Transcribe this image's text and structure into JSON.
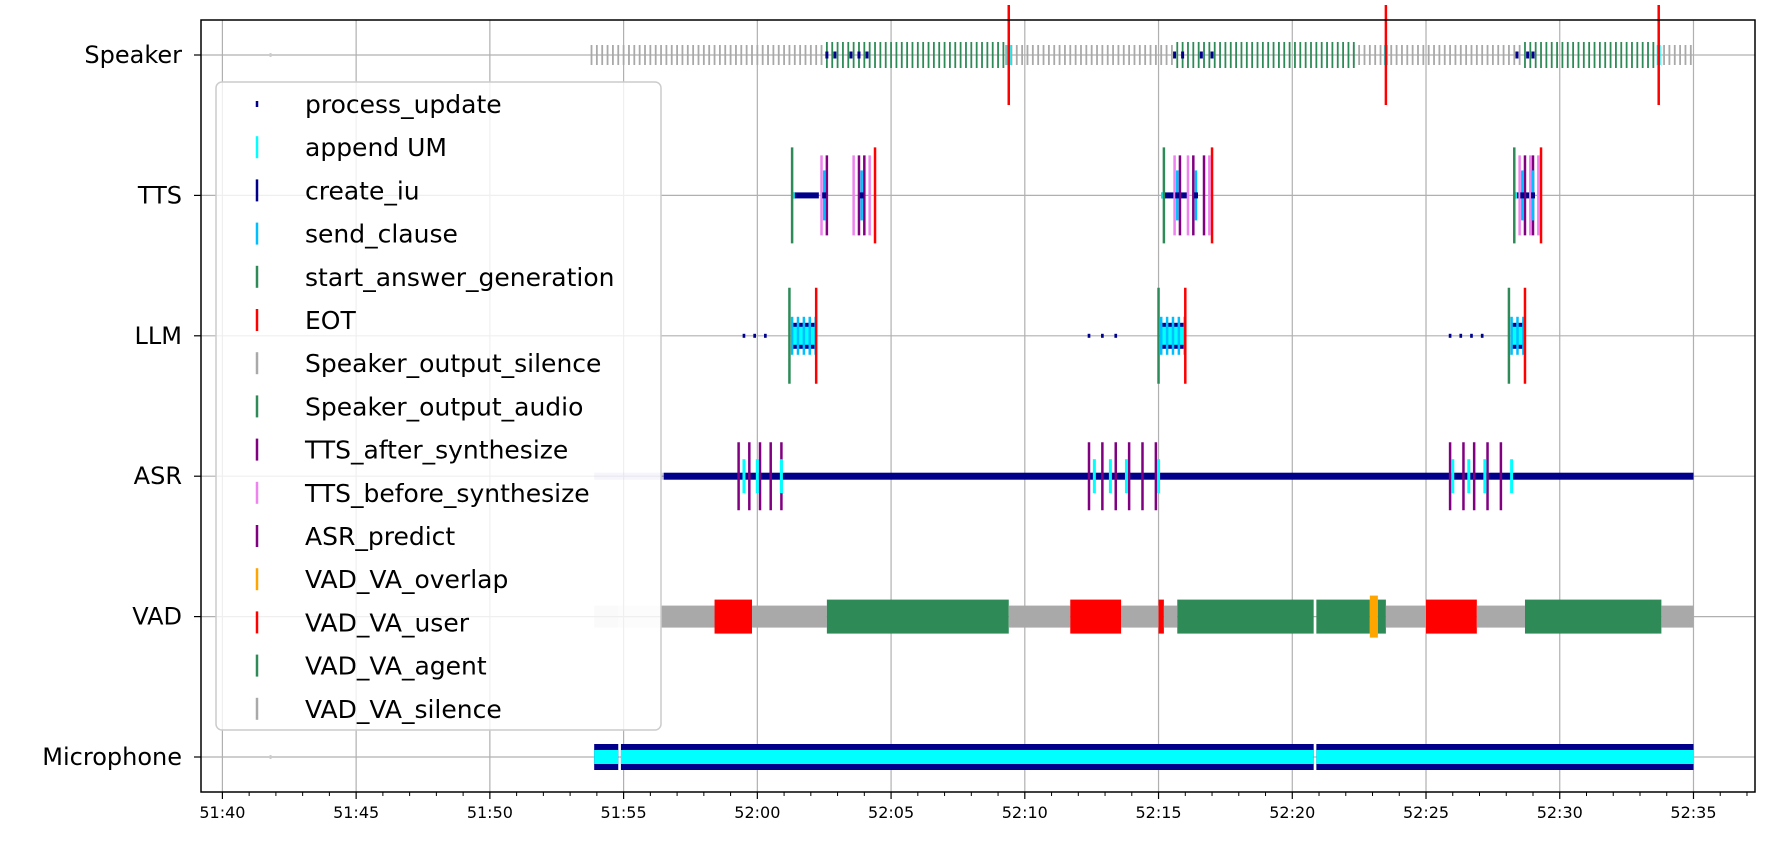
{
  "chart_data": {
    "type": "timeline",
    "x_unit": "minutes:seconds",
    "xlim": [
      99.2,
      157.3
    ],
    "x_ticks": [
      {
        "t": 100,
        "label": "51:40"
      },
      {
        "t": 105,
        "label": "51:45"
      },
      {
        "t": 110,
        "label": "51:50"
      },
      {
        "t": 115,
        "label": "51:55"
      },
      {
        "t": 120,
        "label": "52:00"
      },
      {
        "t": 125,
        "label": "52:05"
      },
      {
        "t": 130,
        "label": "52:10"
      },
      {
        "t": 135,
        "label": "52:15"
      },
      {
        "t": 140,
        "label": "52:20"
      },
      {
        "t": 145,
        "label": "52:25"
      },
      {
        "t": 150,
        "label": "52:30"
      },
      {
        "t": 155,
        "label": "52:35"
      }
    ],
    "rows": [
      "Microphone",
      "VAD",
      "ASR",
      "LLM",
      "TTS",
      "Speaker"
    ],
    "grid": true,
    "legend_position": "upper-left",
    "legend": [
      {
        "label": "process_update",
        "color": "#00008b",
        "marker": "dot"
      },
      {
        "label": "append UM",
        "color": "#00ffff",
        "marker": "tick"
      },
      {
        "label": "create_iu",
        "color": "#00008b",
        "marker": "tick"
      },
      {
        "label": "send_clause",
        "color": "#00bfff",
        "marker": "tick"
      },
      {
        "label": "start_answer_generation",
        "color": "#2e8b57",
        "marker": "tick"
      },
      {
        "label": "EOT",
        "color": "#ff0000",
        "marker": "tick"
      },
      {
        "label": "Speaker_output_silence",
        "color": "#a9a9a9",
        "marker": "tick"
      },
      {
        "label": "Speaker_output_audio",
        "color": "#2e8b57",
        "marker": "tick"
      },
      {
        "label": "TTS_after_synthesize",
        "color": "#800080",
        "marker": "tick"
      },
      {
        "label": "TTS_before_synthesize",
        "color": "#ee82ee",
        "marker": "tick"
      },
      {
        "label": "ASR_predict",
        "color": "#800080",
        "marker": "tick"
      },
      {
        "label": "VAD_VA_overlap",
        "color": "#ffa500",
        "marker": "tick"
      },
      {
        "label": "VAD_VA_user",
        "color": "#ff0000",
        "marker": "tick"
      },
      {
        "label": "VAD_VA_agent",
        "color": "#2e8b57",
        "marker": "tick"
      },
      {
        "label": "VAD_VA_silence",
        "color": "#a9a9a9",
        "marker": "tick"
      }
    ],
    "vad_segments": [
      {
        "start": 113.9,
        "end": 114.8,
        "state": "silence",
        "faded": true
      },
      {
        "start": 114.8,
        "end": 116.4,
        "state": "silence",
        "faded": true
      },
      {
        "start": 116.4,
        "end": 118.4,
        "state": "silence"
      },
      {
        "start": 118.4,
        "end": 119.8,
        "state": "user"
      },
      {
        "start": 119.8,
        "end": 122.6,
        "state": "silence"
      },
      {
        "start": 122.6,
        "end": 129.4,
        "state": "agent"
      },
      {
        "start": 129.4,
        "end": 131.7,
        "state": "silence"
      },
      {
        "start": 131.7,
        "end": 133.6,
        "state": "user"
      },
      {
        "start": 133.6,
        "end": 135.0,
        "state": "silence"
      },
      {
        "start": 135.0,
        "end": 135.2,
        "state": "user"
      },
      {
        "start": 135.2,
        "end": 135.7,
        "state": "silence"
      },
      {
        "start": 135.7,
        "end": 140.8,
        "state": "agent"
      },
      {
        "start": 140.9,
        "end": 142.9,
        "state": "agent"
      },
      {
        "start": 142.9,
        "end": 143.2,
        "state": "overlap"
      },
      {
        "start": 143.2,
        "end": 143.5,
        "state": "agent"
      },
      {
        "start": 143.5,
        "end": 145.0,
        "state": "silence"
      },
      {
        "start": 145.0,
        "end": 146.9,
        "state": "user"
      },
      {
        "start": 146.9,
        "end": 148.7,
        "state": "silence"
      },
      {
        "start": 148.7,
        "end": 153.8,
        "state": "agent"
      },
      {
        "start": 153.8,
        "end": 155.0,
        "state": "silence"
      }
    ],
    "microphone_spans": [
      {
        "start": 113.9,
        "end": 114.8
      },
      {
        "start": 114.9,
        "end": 140.8
      },
      {
        "start": 140.9,
        "end": 155.0
      }
    ],
    "asr": {
      "process_update_spans": [
        {
          "start": 113.9,
          "end": 155.0
        }
      ],
      "asr_predict": [
        119.3,
        119.7,
        120.1,
        120.5,
        120.9,
        132.4,
        132.9,
        133.4,
        133.9,
        134.4,
        134.9,
        145.9,
        146.4,
        146.8,
        147.3,
        147.8
      ],
      "append_um": [
        119.5,
        120.0,
        120.9,
        132.6,
        133.2,
        133.8,
        135.0,
        146.0,
        146.6,
        147.2,
        148.2
      ]
    },
    "llm": {
      "process_update_points": [
        119.5,
        119.9,
        120.3,
        132.4,
        132.9,
        133.4,
        145.9,
        146.3,
        146.7,
        147.1
      ],
      "start_answer_generation": [
        121.2,
        135.0,
        148.1
      ],
      "eot": [
        122.2,
        136.0,
        148.7
      ],
      "bursts": [
        {
          "start": 121.3,
          "end": 122.2
        },
        {
          "start": 135.1,
          "end": 136.0
        },
        {
          "start": 148.2,
          "end": 148.7
        }
      ]
    },
    "tts": {
      "start_answer_generation": [
        121.3,
        135.2,
        148.3
      ],
      "eot": [
        124.4,
        137.0,
        149.3
      ],
      "create_iu_spans": [
        {
          "start": 121.3,
          "end": 122.3
        },
        {
          "start": 135.1,
          "end": 136.1
        },
        {
          "start": 148.3,
          "end": 148.9
        }
      ],
      "synth_groups": [
        {
          "after": [
            122.6,
            123.8,
            124.0
          ],
          "before": [
            122.4,
            123.6,
            124.2
          ]
        },
        {
          "after": [
            135.8,
            136.3,
            136.7
          ],
          "before": [
            135.6,
            136.1,
            136.9
          ]
        },
        {
          "after": [
            148.7,
            149.0
          ],
          "before": [
            148.5,
            148.9,
            149.2
          ]
        }
      ],
      "send_clause": [
        122.5,
        123.9,
        135.7,
        136.4,
        148.6,
        149.0
      ]
    },
    "speaker": {
      "silence_spans": [
        {
          "start": 113.8,
          "end": 122.6
        },
        {
          "start": 129.3,
          "end": 135.5
        },
        {
          "start": 142.3,
          "end": 148.6
        },
        {
          "start": 153.7,
          "end": 155.0
        }
      ],
      "audio_spans": [
        {
          "start": 122.6,
          "end": 129.3
        },
        {
          "start": 135.7,
          "end": 142.3
        },
        {
          "start": 148.7,
          "end": 153.7
        }
      ],
      "eot": [
        129.4,
        143.5,
        153.7
      ],
      "append_um": [
        129.4,
        143.5,
        153.7
      ],
      "create_iu_points": [
        122.6,
        122.9,
        123.5,
        123.8,
        124.1,
        135.6,
        135.9,
        136.6,
        137.0,
        148.4,
        148.8,
        149.0
      ],
      "stray": [
        101.8
      ]
    }
  }
}
